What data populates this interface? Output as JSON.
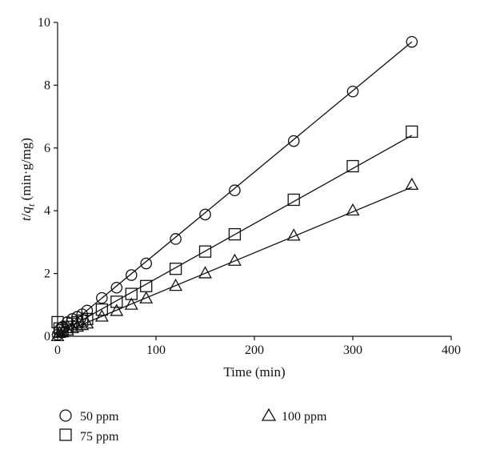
{
  "chart_data": {
    "type": "scatter",
    "xlabel": "Time (min)",
    "ylabel": {
      "t": "t",
      "slash": "/",
      "q": "q",
      "sub": "t",
      "unit": " (min·g/mg)"
    },
    "xlim": [
      0,
      400
    ],
    "ylim": [
      0,
      10
    ],
    "xticks": [
      0,
      100,
      200,
      300,
      400
    ],
    "yticks": [
      0,
      2,
      4,
      6,
      8,
      10
    ],
    "grid": false,
    "legend_position": "bottom",
    "series": [
      {
        "name": "50 ppm",
        "marker": "circle",
        "x": [
          0,
          2,
          5,
          10,
          15,
          20,
          25,
          30,
          45,
          60,
          75,
          90,
          120,
          150,
          180,
          240,
          300,
          360
        ],
        "y": [
          0.05,
          0.2,
          0.3,
          0.45,
          0.55,
          0.62,
          0.7,
          0.82,
          1.22,
          1.55,
          1.95,
          2.32,
          3.1,
          3.88,
          4.65,
          6.22,
          7.8,
          9.38
        ],
        "fit": [
          [
            0,
            0.05
          ],
          [
            360,
            9.38
          ]
        ]
      },
      {
        "name": "75 ppm",
        "marker": "square",
        "x": [
          0,
          2,
          5,
          10,
          15,
          20,
          25,
          30,
          45,
          60,
          75,
          90,
          120,
          150,
          180,
          240,
          300,
          360
        ],
        "y": [
          0.45,
          0.25,
          0.2,
          0.3,
          0.4,
          0.45,
          0.5,
          0.55,
          0.85,
          1.1,
          1.35,
          1.6,
          2.15,
          2.7,
          3.25,
          4.35,
          5.42,
          6.52
        ],
        "fit": [
          [
            0,
            0.08
          ],
          [
            360,
            6.4
          ]
        ]
      },
      {
        "name": "100 ppm",
        "marker": "triangle",
        "x": [
          0,
          2,
          5,
          10,
          15,
          20,
          25,
          30,
          45,
          60,
          75,
          90,
          120,
          150,
          180,
          240,
          300,
          360
        ],
        "y": [
          0.0,
          0.1,
          0.12,
          0.18,
          0.25,
          0.3,
          0.35,
          0.4,
          0.62,
          0.8,
          1.0,
          1.2,
          1.6,
          2.0,
          2.4,
          3.2,
          4.0,
          4.82
        ],
        "fit": [
          [
            0,
            0.05
          ],
          [
            360,
            4.75
          ]
        ]
      }
    ]
  }
}
